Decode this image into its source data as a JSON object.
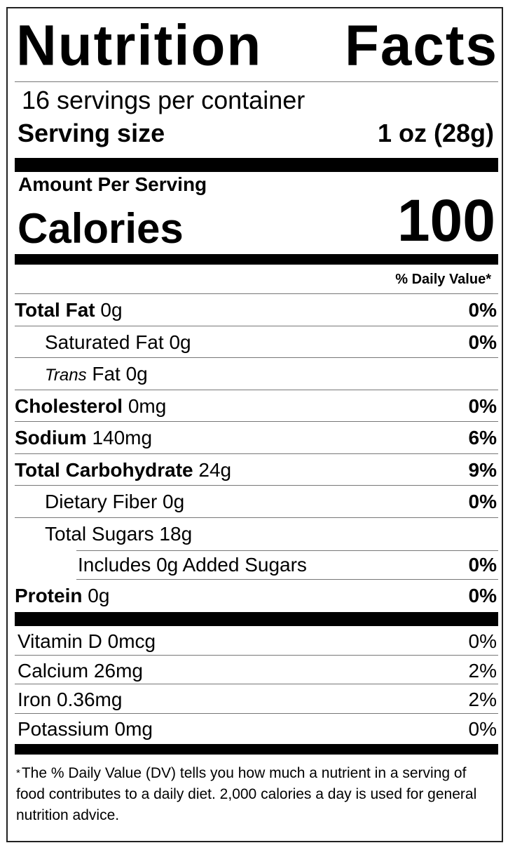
{
  "title_words": [
    "Nutrition",
    "Facts"
  ],
  "servings_per_container": "16 servings per container",
  "serving_size": {
    "label": "Serving size",
    "value": "1 oz (28g)"
  },
  "amount_per_serving": "Amount Per Serving",
  "calories": {
    "label": "Calories",
    "value": "100"
  },
  "daily_value_header": "% Daily Value*",
  "nutrients": [
    {
      "name": "Total Fat",
      "amount": "0g",
      "dv": "0%"
    },
    {
      "name": "Saturated Fat",
      "amount": "0g",
      "dv": "0%"
    },
    {
      "name": "Trans",
      "suffix": "Fat",
      "amount": "0g",
      "dv": ""
    },
    {
      "name": "Cholesterol",
      "amount": "0mg",
      "dv": "0%"
    },
    {
      "name": "Sodium",
      "amount": "140mg",
      "dv": "6%"
    },
    {
      "name": "Total Carbohydrate",
      "amount": "24g",
      "dv": "9%"
    },
    {
      "name": "Dietary Fiber",
      "amount": "0g",
      "dv": "0%"
    },
    {
      "name": "Total Sugars",
      "amount": "18g",
      "dv": ""
    },
    {
      "name": "Includes 0g Added Sugars",
      "amount": "",
      "dv": "0%"
    },
    {
      "name": "Protein",
      "amount": "0g",
      "dv": "0%"
    }
  ],
  "vitamins": [
    {
      "name": "Vitamin D",
      "amount": "0mcg",
      "dv": "0%"
    },
    {
      "name": "Calcium",
      "amount": "26mg",
      "dv": "2%"
    },
    {
      "name": "Iron",
      "amount": "0.36mg",
      "dv": "2%"
    },
    {
      "name": "Potassium",
      "amount": "0mg",
      "dv": "0%"
    }
  ],
  "footnote": {
    "marker": "*",
    "text": "The % Daily Value (DV) tells you how much a nutrient in a serving of food contributes to a daily diet. 2,000 calories a day is used for general nutrition advice."
  }
}
